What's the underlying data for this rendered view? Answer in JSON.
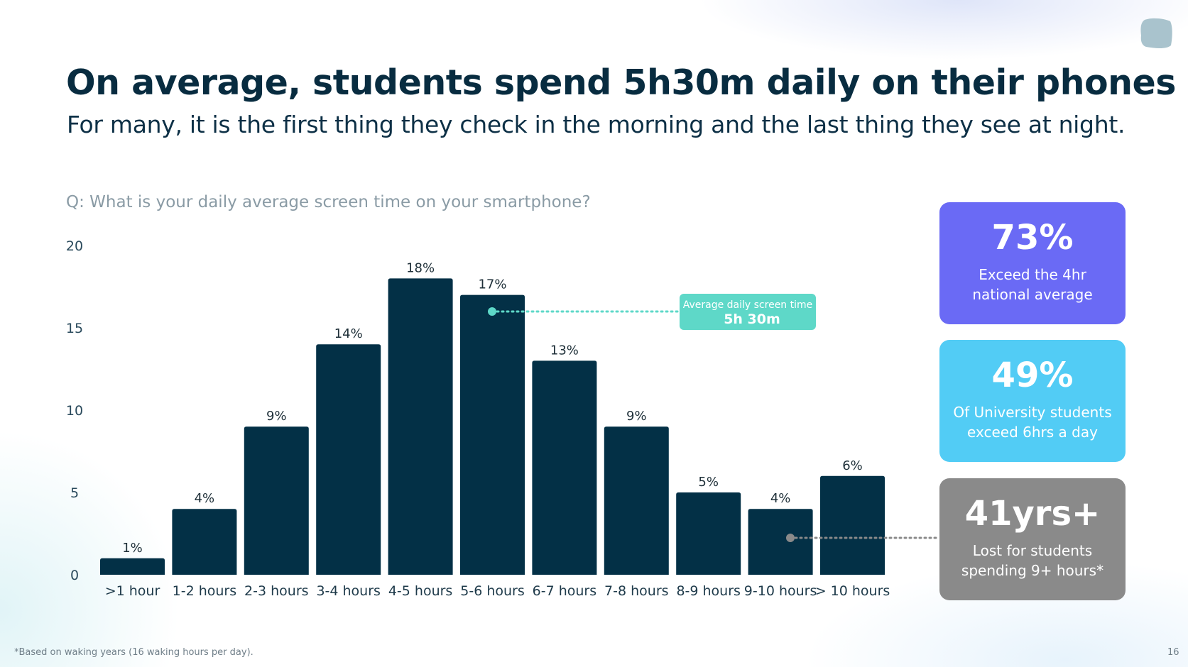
{
  "slide": {
    "title": "On average, students spend 5h30m daily on their phones",
    "subtitle": "For many, it is the first thing they check in the morning and the last thing they see at night.",
    "question": "Q: What is your daily average screen time on your smartphone?",
    "footnote": "*Based on waking years (16 waking hours per day).",
    "page_number": "16"
  },
  "callout": {
    "label": "Average daily screen time",
    "value": "5h 30m",
    "color": "#5ed8c8"
  },
  "stats": [
    {
      "value": "73%",
      "text": "Exceed the 4hr national average",
      "color": "#6a6af5"
    },
    {
      "value": "49%",
      "text": "Of University students exceed 6hrs a day",
      "color": "#52ccf5"
    },
    {
      "value": "41yrs+",
      "text": "Lost for students spending 9+ hours*",
      "color": "#8a8a8a"
    }
  ],
  "chart_data": {
    "type": "bar",
    "categories": [
      ">1 hour",
      "1-2 hours",
      "2-3 hours",
      "3-4 hours",
      "4-5 hours",
      "5-6 hours",
      "6-7 hours",
      "7-8 hours",
      "8-9 hours",
      "9-10 hours",
      "> 10 hours"
    ],
    "values": [
      1,
      4,
      9,
      14,
      18,
      17,
      13,
      9,
      5,
      4,
      6
    ],
    "data_labels": [
      "1%",
      "4%",
      "9%",
      "14%",
      "18%",
      "17%",
      "13%",
      "9%",
      "5%",
      "4%",
      "6%"
    ],
    "y_ticks": [
      0,
      5,
      10,
      15,
      20
    ],
    "ylim": [
      0,
      20
    ],
    "grid": false,
    "bar_color": "#033046"
  }
}
